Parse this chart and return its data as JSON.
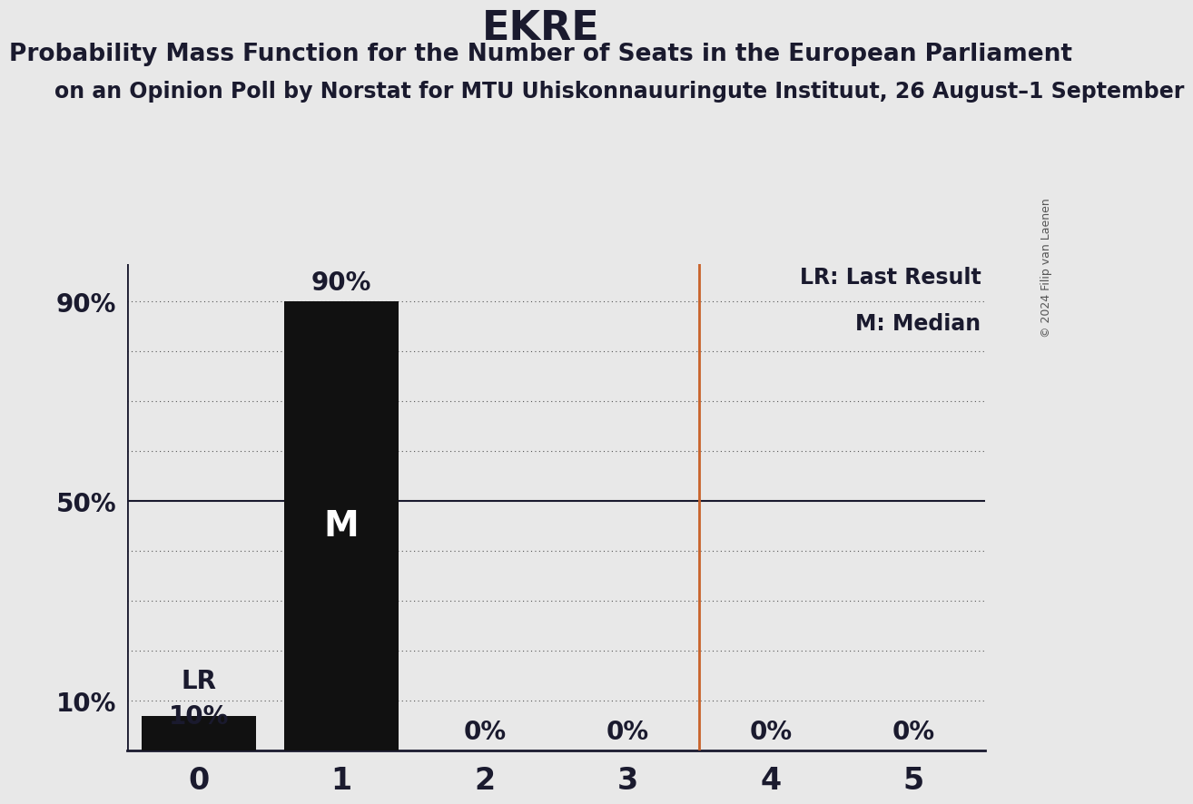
{
  "title": "EKRE",
  "subtitle1": "Probability Mass Function for the Number of Seats in the European Parliament",
  "subtitle2": "on an Opinion Poll by Norstat for MTU Uhiskonnauuringute Instituut, 26 August–1 September",
  "copyright": "© 2024 Filip van Laenen",
  "seats": [
    0,
    1,
    2,
    3,
    4,
    5
  ],
  "probabilities": [
    0.07,
    0.9,
    0.0,
    0.0,
    0.0,
    0.0
  ],
  "bar_color": "#111111",
  "background_color": "#e8e8e8",
  "last_result_x": 3.5,
  "last_result_color": "#c8622a",
  "bar_top_labels": [
    "",
    "90%",
    "0%",
    "0%",
    "0%",
    "0%"
  ],
  "lr_label": "LR",
  "lr_value_label": "10%",
  "lr_prob": 0.07,
  "lr_dotted_y": 0.1,
  "median_label": "M",
  "median_seat": 1,
  "yticks": [
    0.0,
    0.1,
    0.2,
    0.3,
    0.4,
    0.5,
    0.6,
    0.7,
    0.8,
    0.9
  ],
  "ytick_labels": [
    "",
    "10%",
    "",
    "",
    "",
    "50%",
    "",
    "",
    "",
    "90%"
  ],
  "ylim": [
    0,
    0.975
  ],
  "xlim": [
    -0.5,
    5.5
  ],
  "legend_lr": "LR: Last Result",
  "legend_m": "M: Median",
  "title_fontsize": 32,
  "subtitle1_fontsize": 19,
  "subtitle2_fontsize": 17,
  "bar_label_fontsize": 20,
  "legend_fontsize": 17,
  "ytick_fontsize": 20,
  "xtick_fontsize": 24,
  "median_fontsize": 28,
  "lr_label_fontsize": 20,
  "copyright_fontsize": 9
}
